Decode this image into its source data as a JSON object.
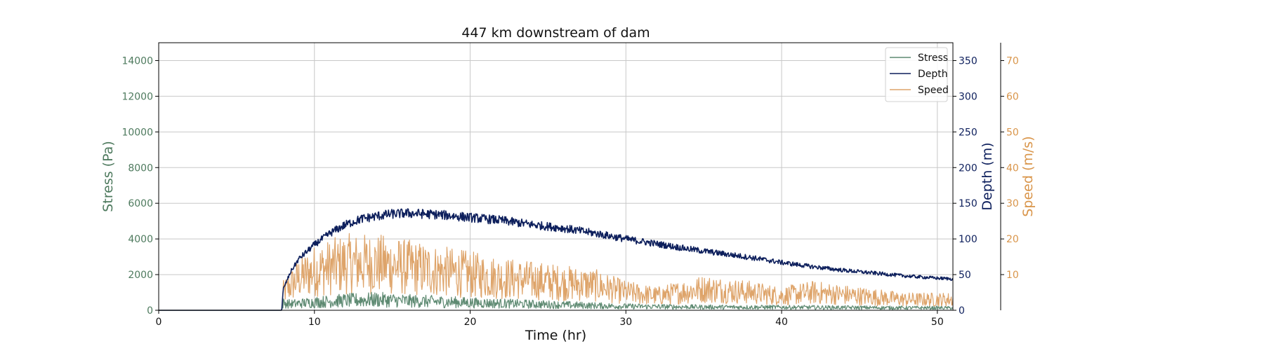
{
  "chart_data": {
    "type": "line",
    "title": "447 km downstream of dam",
    "xlabel": "Time (hr)",
    "xlim": [
      0,
      51
    ],
    "xticks": [
      0,
      10,
      20,
      30,
      40,
      50
    ],
    "grid": true,
    "legend_position": "top-right",
    "axes": [
      {
        "id": "stress",
        "label": "Stress (Pa)",
        "side": "left",
        "ylim": [
          0,
          15000
        ],
        "ticks": [
          0,
          2000,
          4000,
          6000,
          8000,
          10000,
          12000,
          14000
        ],
        "color": "#4e7a5e"
      },
      {
        "id": "depth",
        "label": "Depth (m)",
        "side": "right",
        "ylim": [
          0,
          375
        ],
        "ticks": [
          0,
          50,
          100,
          150,
          200,
          250,
          300,
          350
        ],
        "color": "#0d1f5c"
      },
      {
        "id": "speed",
        "label": "Speed (m/s)",
        "side": "right-offset",
        "ylim": [
          0,
          75
        ],
        "ticks": [
          10,
          20,
          30,
          40,
          50,
          60,
          70
        ],
        "color": "#d9954a"
      }
    ],
    "series": [
      {
        "name": "Stress",
        "axis": "stress",
        "color": "#5e8a72",
        "x": [
          0,
          7.9,
          8.0,
          8.5,
          10,
          12,
          14,
          16,
          18,
          20,
          25,
          30,
          35,
          40,
          45,
          51
        ],
        "values": [
          0,
          0,
          400,
          350,
          450,
          550,
          600,
          520,
          480,
          420,
          320,
          220,
          180,
          170,
          150,
          130
        ],
        "noise": 0.6
      },
      {
        "name": "Depth",
        "axis": "depth",
        "color": "#0d1f5c",
        "x": [
          0,
          7.9,
          8.0,
          8.5,
          9,
          10,
          11,
          12,
          13,
          14,
          15,
          16,
          18,
          20,
          22,
          24,
          26,
          28,
          30,
          32,
          34,
          36,
          38,
          40,
          42,
          44,
          46,
          48,
          50,
          51
        ],
        "values": [
          0,
          0,
          30,
          55,
          72,
          92,
          108,
          120,
          128,
          132,
          135,
          136,
          134,
          130,
          126,
          120,
          115,
          108,
          100,
          93,
          86,
          80,
          74,
          67,
          61,
          56,
          52,
          48,
          45,
          44
        ],
        "noise": 0.05
      },
      {
        "name": "Speed",
        "axis": "speed",
        "color": "#dea46a",
        "x": [
          0,
          7.9,
          8.0,
          8.5,
          9,
          10,
          12,
          14,
          16,
          18,
          20,
          22,
          25,
          28,
          30,
          32,
          35,
          38,
          40,
          42,
          45,
          48,
          51
        ],
        "values": [
          0,
          0,
          5,
          7,
          9,
          11,
          13,
          13,
          12,
          11,
          10,
          9,
          8,
          7,
          5,
          4,
          6,
          5,
          4,
          5,
          4,
          3,
          3
        ],
        "noise": 0.55
      }
    ]
  }
}
